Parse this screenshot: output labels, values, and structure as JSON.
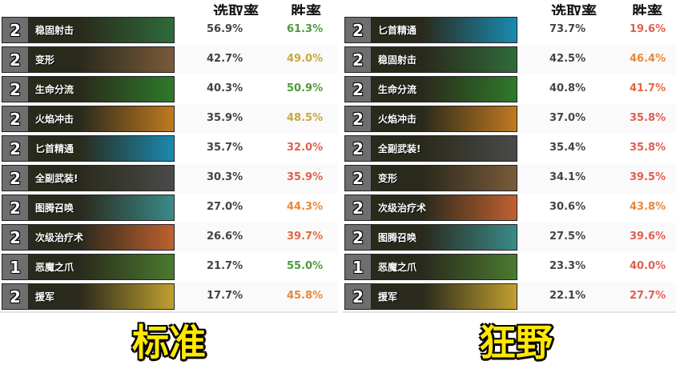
{
  "headers": {
    "pick": "选取率",
    "win": "胜率"
  },
  "standard": {
    "label": "标准",
    "rows": [
      {
        "cost": "2",
        "name": "稳固射击",
        "pick": "56.9%",
        "win": "61.3%",
        "win_color": "#4e9a3c",
        "art": "#2f6a3a"
      },
      {
        "cost": "2",
        "name": "变形",
        "pick": "42.7%",
        "win": "49.0%",
        "win_color": "#c8a83a",
        "art": "#7a5a3a"
      },
      {
        "cost": "2",
        "name": "生命分流",
        "pick": "40.3%",
        "win": "50.9%",
        "win_color": "#4e9a3c",
        "art": "#2e7a2a"
      },
      {
        "cost": "2",
        "name": "火焰冲击",
        "pick": "35.9%",
        "win": "48.5%",
        "win_color": "#c8a83a",
        "art": "#c07a20"
      },
      {
        "cost": "2",
        "name": "匕首精通",
        "pick": "35.7%",
        "win": "32.0%",
        "win_color": "#e06050",
        "art": "#1a8ab0"
      },
      {
        "cost": "2",
        "name": "全副武装!",
        "pick": "30.3%",
        "win": "35.9%",
        "win_color": "#e06050",
        "art": "#4a4a4a"
      },
      {
        "cost": "2",
        "name": "图腾召唤",
        "pick": "27.0%",
        "win": "44.3%",
        "win_color": "#e8883a",
        "art": "#3a8a8a"
      },
      {
        "cost": "2",
        "name": "次级治疗术",
        "pick": "26.6%",
        "win": "39.7%",
        "win_color": "#e06a40",
        "art": "#c06030"
      },
      {
        "cost": "1",
        "name": "恶魔之爪",
        "pick": "21.7%",
        "win": "55.0%",
        "win_color": "#4e9a3c",
        "art": "#4a7a30"
      },
      {
        "cost": "2",
        "name": "援军",
        "pick": "17.7%",
        "win": "45.8%",
        "win_color": "#e8883a",
        "art": "#c0a030"
      }
    ]
  },
  "wild": {
    "label": "狂野",
    "rows": [
      {
        "cost": "2",
        "name": "匕首精通",
        "pick": "73.7%",
        "win": "19.6%",
        "win_color": "#e06050",
        "art": "#1a8ab0"
      },
      {
        "cost": "2",
        "name": "稳固射击",
        "pick": "42.5%",
        "win": "46.4%",
        "win_color": "#e8883a",
        "art": "#2f6a3a"
      },
      {
        "cost": "2",
        "name": "生命分流",
        "pick": "40.8%",
        "win": "41.7%",
        "win_color": "#e06a40",
        "art": "#2e7a2a"
      },
      {
        "cost": "2",
        "name": "火焰冲击",
        "pick": "37.0%",
        "win": "35.8%",
        "win_color": "#e06050",
        "art": "#c07a20"
      },
      {
        "cost": "2",
        "name": "全副武装!",
        "pick": "35.4%",
        "win": "35.8%",
        "win_color": "#e06050",
        "art": "#4a4a4a"
      },
      {
        "cost": "2",
        "name": "变形",
        "pick": "34.1%",
        "win": "39.5%",
        "win_color": "#e06050",
        "art": "#7a5a3a"
      },
      {
        "cost": "2",
        "name": "次级治疗术",
        "pick": "30.6%",
        "win": "43.8%",
        "win_color": "#e8883a",
        "art": "#c06030"
      },
      {
        "cost": "2",
        "name": "图腾召唤",
        "pick": "27.5%",
        "win": "39.6%",
        "win_color": "#e06050",
        "art": "#3a8a8a"
      },
      {
        "cost": "1",
        "name": "恶魔之爪",
        "pick": "23.3%",
        "win": "40.0%",
        "win_color": "#e06050",
        "art": "#4a7a30"
      },
      {
        "cost": "2",
        "name": "援军",
        "pick": "22.1%",
        "win": "27.7%",
        "win_color": "#e06050",
        "art": "#c0a030"
      }
    ]
  }
}
